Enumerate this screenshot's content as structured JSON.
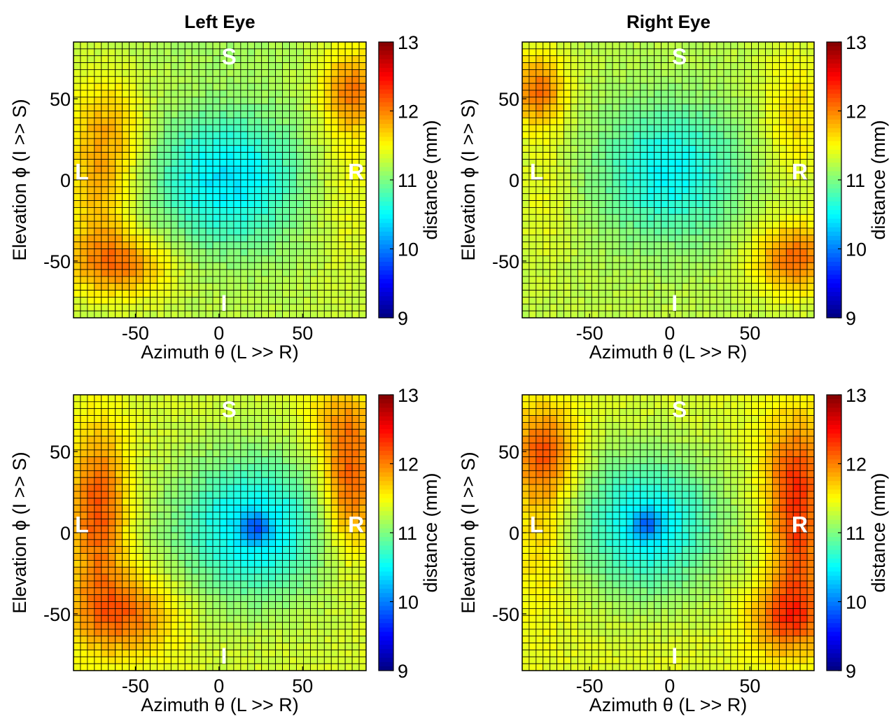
{
  "colors": {
    "colormap": "jet",
    "grid_line": "#000000",
    "annotation_text": "#ffffff"
  },
  "chart_data": [
    {
      "type": "heatmap",
      "title": "Left Eye",
      "xlabel": "Azimuth θ (L >> R)",
      "ylabel": "Elevation ϕ (I >> S)",
      "colorbar_label": "distance (mm)",
      "xlim": [
        -87,
        88
      ],
      "ylim": [
        -85,
        85
      ],
      "xticks": [
        -50,
        0,
        50
      ],
      "yticks": [
        50,
        0,
        -50
      ],
      "clim": [
        9,
        13
      ],
      "colorbar_ticks": [
        13,
        12,
        11,
        10,
        9
      ],
      "annotations": [
        {
          "text": "S",
          "x": 6,
          "y": 76
        },
        {
          "text": "L",
          "x": -82,
          "y": 5
        },
        {
          "text": "R",
          "x": 82,
          "y": 5
        },
        {
          "text": "I",
          "x": 3,
          "y": -76
        }
      ],
      "grid": {
        "cols": 42,
        "rows": 40
      },
      "field": {
        "base": 11.25,
        "bumps": [
          {
            "x": 5,
            "y": 0,
            "sx": 32,
            "sy": 30,
            "a": -0.85
          },
          {
            "x": -67,
            "y": 30,
            "sx": 16,
            "sy": 24,
            "a": 0.55
          },
          {
            "x": -72,
            "y": -15,
            "sx": 14,
            "sy": 24,
            "a": 0.45
          },
          {
            "x": -60,
            "y": -52,
            "sx": 22,
            "sy": 14,
            "a": 0.75
          },
          {
            "x": 80,
            "y": 56,
            "sx": 13,
            "sy": 18,
            "a": 0.7
          },
          {
            "x": 76,
            "y": 0,
            "sx": 14,
            "sy": 40,
            "a": 0.25
          },
          {
            "x": 5,
            "y": 80,
            "sx": 40,
            "sy": 8,
            "a": -0.1
          }
        ]
      }
    },
    {
      "type": "heatmap",
      "title": "Right Eye",
      "xlabel": "Azimuth θ (L >> R)",
      "ylabel": "Elevation ϕ (I >> S)",
      "colorbar_label": "distance (mm)",
      "xlim": [
        -92,
        90
      ],
      "ylim": [
        -85,
        85
      ],
      "xticks": [
        -50,
        0,
        50
      ],
      "yticks": [
        50,
        0,
        -50
      ],
      "clim": [
        9,
        13
      ],
      "colorbar_ticks": [
        13,
        12,
        11,
        10,
        9
      ],
      "annotations": [
        {
          "text": "S",
          "x": 6,
          "y": 76
        },
        {
          "text": "L",
          "x": -83,
          "y": 5
        },
        {
          "text": "R",
          "x": 81,
          "y": 5
        },
        {
          "text": "I",
          "x": 3,
          "y": -76
        }
      ],
      "grid": {
        "cols": 42,
        "rows": 40
      },
      "field": {
        "base": 11.25,
        "bumps": [
          {
            "x": 0,
            "y": 5,
            "sx": 32,
            "sy": 30,
            "a": -0.75
          },
          {
            "x": -82,
            "y": 55,
            "sx": 12,
            "sy": 16,
            "a": 0.8
          },
          {
            "x": -78,
            "y": -10,
            "sx": 12,
            "sy": 30,
            "a": 0.2
          },
          {
            "x": 78,
            "y": -48,
            "sx": 18,
            "sy": 15,
            "a": 0.85
          },
          {
            "x": 78,
            "y": 40,
            "sx": 14,
            "sy": 28,
            "a": 0.4
          }
        ]
      }
    },
    {
      "type": "heatmap",
      "title": "",
      "xlabel": "Azimuth θ (L >> R)",
      "ylabel": "Elevation ϕ (I >> S)",
      "colorbar_label": "distance (mm)",
      "xlim": [
        -87,
        88
      ],
      "ylim": [
        -85,
        85
      ],
      "xticks": [
        -50,
        0,
        50
      ],
      "yticks": [
        50,
        0,
        -50
      ],
      "clim": [
        9,
        13
      ],
      "colorbar_ticks": [
        13,
        12,
        11,
        10,
        9
      ],
      "annotations": [
        {
          "text": "S",
          "x": 6,
          "y": 76
        },
        {
          "text": "L",
          "x": -82,
          "y": 5
        },
        {
          "text": "R",
          "x": 82,
          "y": 5
        },
        {
          "text": "I",
          "x": 3,
          "y": -76
        }
      ],
      "grid": {
        "cols": 42,
        "rows": 40
      },
      "field": {
        "base": 11.35,
        "bumps": [
          {
            "x": 20,
            "y": 3,
            "sx": 34,
            "sy": 32,
            "a": -0.95
          },
          {
            "x": 22,
            "y": 3,
            "sx": 6,
            "sy": 6,
            "a": -0.6
          },
          {
            "x": -72,
            "y": 15,
            "sx": 12,
            "sy": 36,
            "a": 0.85
          },
          {
            "x": -58,
            "y": -50,
            "sx": 22,
            "sy": 18,
            "a": 0.75
          },
          {
            "x": 78,
            "y": 30,
            "sx": 12,
            "sy": 30,
            "a": 0.9
          },
          {
            "x": 70,
            "y": 70,
            "sx": 16,
            "sy": 14,
            "a": 0.3
          }
        ]
      }
    },
    {
      "type": "heatmap",
      "title": "",
      "xlabel": "Azimuth θ (L >> R)",
      "ylabel": "Elevation ϕ (I >> S)",
      "colorbar_label": "distance (mm)",
      "xlim": [
        -92,
        90
      ],
      "ylim": [
        -85,
        85
      ],
      "xticks": [
        -50,
        0,
        50
      ],
      "yticks": [
        50,
        0,
        -50
      ],
      "clim": [
        9,
        13
      ],
      "colorbar_ticks": [
        13,
        12,
        11,
        10,
        9
      ],
      "annotations": [
        {
          "text": "S",
          "x": 6,
          "y": 76
        },
        {
          "text": "L",
          "x": -83,
          "y": 5
        },
        {
          "text": "R",
          "x": 81,
          "y": 5
        },
        {
          "text": "I",
          "x": 3,
          "y": -76
        }
      ],
      "grid": {
        "cols": 42,
        "rows": 40
      },
      "field": {
        "base": 11.4,
        "bumps": [
          {
            "x": -14,
            "y": 5,
            "sx": 34,
            "sy": 32,
            "a": -0.95
          },
          {
            "x": -14,
            "y": 5,
            "sx": 6,
            "sy": 6,
            "a": -0.6
          },
          {
            "x": -78,
            "y": 50,
            "sx": 14,
            "sy": 20,
            "a": 0.75
          },
          {
            "x": -80,
            "y": 0,
            "sx": 12,
            "sy": 30,
            "a": 0.35
          },
          {
            "x": 78,
            "y": 30,
            "sx": 13,
            "sy": 28,
            "a": 0.9
          },
          {
            "x": 75,
            "y": -52,
            "sx": 16,
            "sy": 16,
            "a": 0.9
          },
          {
            "x": 80,
            "y": -15,
            "sx": 10,
            "sy": 20,
            "a": 0.5
          }
        ]
      }
    }
  ]
}
